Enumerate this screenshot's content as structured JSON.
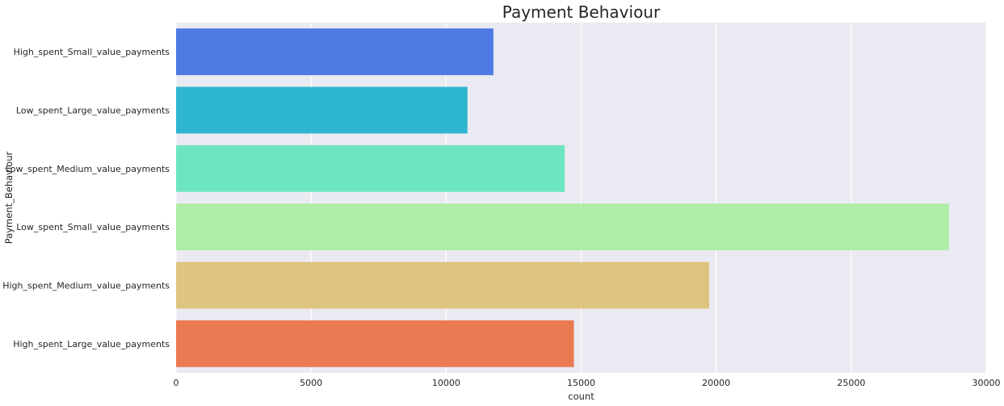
{
  "chart_data": {
    "type": "bar",
    "orientation": "horizontal",
    "title": "Payment Behaviour",
    "xlabel": "count",
    "ylabel": "Payment_Behaviour",
    "categories": [
      "High_spent_Small_value_payments",
      "Low_spent_Large_value_payments",
      "Low_spent_Medium_value_payments",
      "Low_spent_Small_value_payments",
      "High_spent_Medium_value_payments",
      "High_spent_Large_value_payments"
    ],
    "values": [
      11750,
      10790,
      14390,
      28620,
      19740,
      14730
    ],
    "colors": [
      "#4f7ae4",
      "#2fb6cf",
      "#6ee5c2",
      "#aeeda8",
      "#dec47f",
      "#ea7a52"
    ],
    "xlim": [
      0,
      30000
    ],
    "xticks": [
      0,
      5000,
      10000,
      15000,
      20000,
      25000,
      30000
    ],
    "xtick_labels": [
      "0",
      "5000",
      "10000",
      "15000",
      "20000",
      "25000",
      "30000"
    ],
    "grid": true,
    "background_color": "#eaeaf2",
    "grid_color": "#ffffff"
  }
}
